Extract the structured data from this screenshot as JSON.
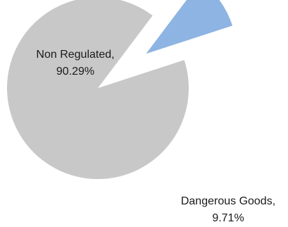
{
  "chart_data": {
    "type": "pie",
    "title": "",
    "slices": [
      {
        "label": "Non Regulated",
        "value": 90.29,
        "label_line1": "Non Regulated,",
        "label_line2": "90.29%",
        "color": "#c8c8c8",
        "exploded": false
      },
      {
        "label": "Dangerous Goods",
        "value": 9.71,
        "label_line1": "Dangerous Goods,",
        "label_line2": "9.71%",
        "color": "#8db4e2",
        "exploded": true
      }
    ],
    "legend": "none"
  }
}
